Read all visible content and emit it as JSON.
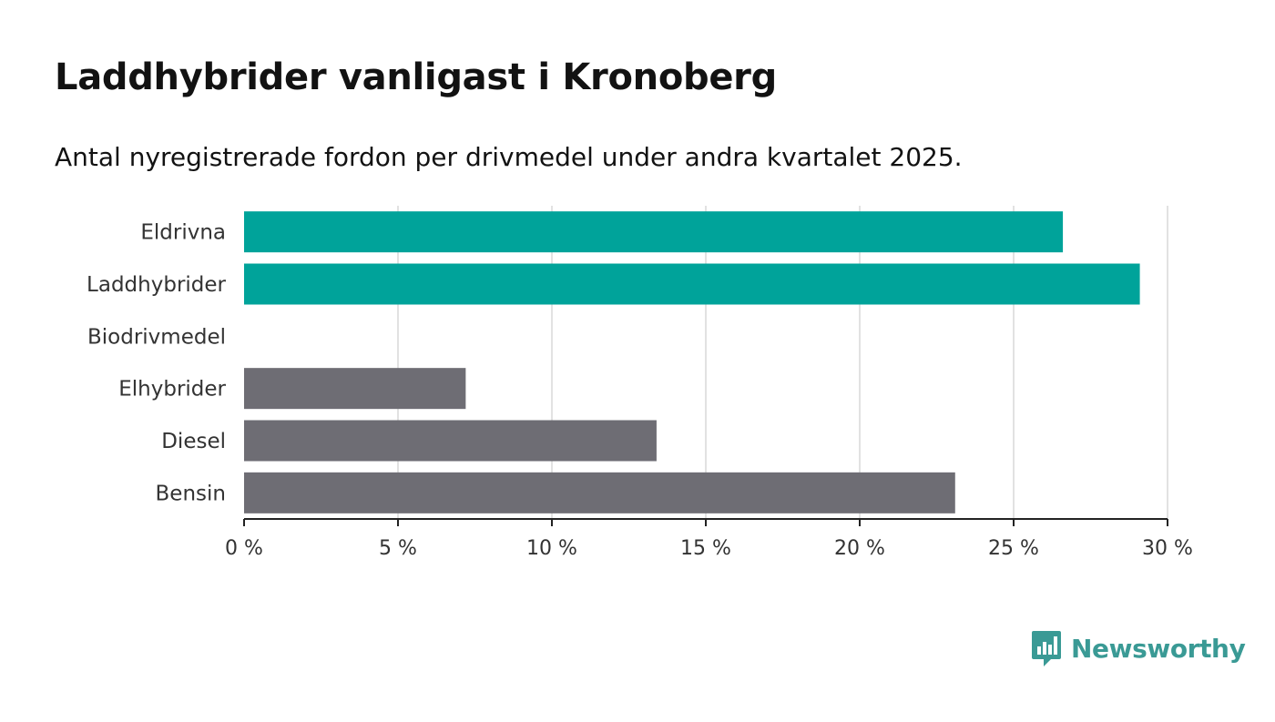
{
  "title": "Laddhybrider vanligast i Kronoberg",
  "subtitle": "Antal nyregistrerade fordon per drivmedel under andra kvartalet 2025.",
  "brand": {
    "name": "Newsworthy",
    "logo_icon": "bar-chart-speech-bubble-icon",
    "color": "#3a9a95"
  },
  "colors": {
    "highlight": "#00a39a",
    "default": "#6e6d74",
    "grid": "#d9d9d9",
    "axis": "#222222"
  },
  "chart_data": {
    "type": "bar",
    "orientation": "horizontal",
    "categories": [
      "Eldrivna",
      "Laddhybrider",
      "Biodrivmedel",
      "Elhybrider",
      "Diesel",
      "Bensin"
    ],
    "values": [
      26.6,
      29.1,
      0,
      7.2,
      13.4,
      23.1
    ],
    "highlighted": [
      true,
      true,
      false,
      false,
      false,
      false
    ],
    "xlim": [
      0,
      30
    ],
    "xticks": [
      0,
      5,
      10,
      15,
      20,
      25,
      30
    ],
    "xtick_labels": [
      "0 %",
      "5 %",
      "10 %",
      "15 %",
      "20 %",
      "25 %",
      "30 %"
    ],
    "grid": true,
    "title": "Laddhybrider vanligast i Kronoberg",
    "xlabel": "",
    "ylabel": ""
  }
}
